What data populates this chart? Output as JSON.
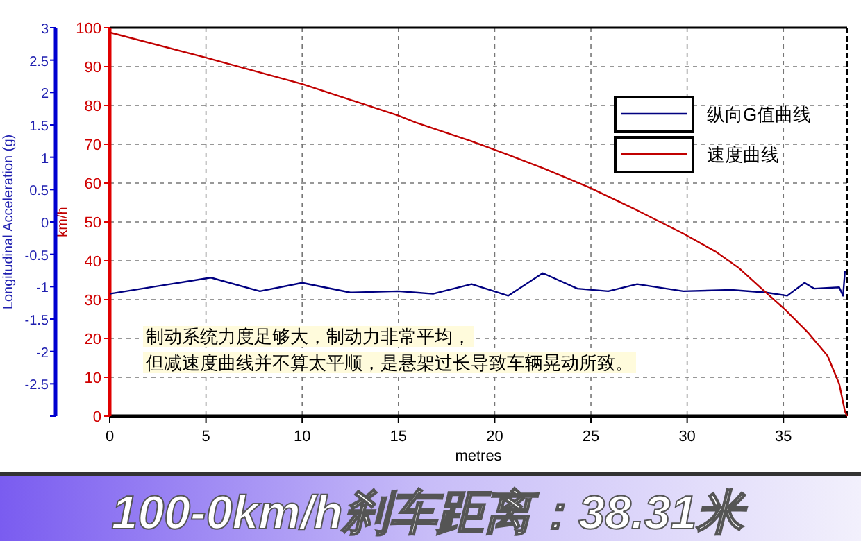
{
  "chart_data": {
    "type": "line",
    "title": "100-0km/h刹车距离：38.31米",
    "xlabel": "metres",
    "ylabel": "km/h",
    "y2label": "Longitudinal Acceleration (g)",
    "xlim": [
      0,
      38.31
    ],
    "xticks": [
      0,
      5,
      10,
      15,
      20,
      25,
      30,
      35
    ],
    "ylim": [
      0,
      100
    ],
    "yticks": [
      0,
      10,
      20,
      30,
      40,
      50,
      60,
      70,
      80,
      90,
      100
    ],
    "y2lim": [
      -3,
      3
    ],
    "y2ticks": [
      {
        "value": -3,
        "label": null
      },
      -2.5,
      -2,
      -1.5,
      -1,
      -0.5,
      0,
      0.5,
      1,
      1.5,
      2,
      2.5,
      3
    ],
    "grid": true,
    "legend": "top right",
    "annotations": [
      "制动系统力度足够大，制动力非常平均，",
      "但减速度曲线并不算太平顺，是悬架过长导致车辆晃动所致。"
    ],
    "series": [
      {
        "name": "纵向G值曲线",
        "color": "#000080",
        "axis": "y2",
        "x": [
          0,
          5.25,
          7.8,
          10.0,
          12.5,
          15.0,
          15.9,
          16.8,
          18.8,
          20.7,
          22.5,
          24.3,
          25.9,
          27.4,
          29.8,
          32.3,
          34.1,
          35.2,
          36.1,
          36.6,
          37.9,
          38.1,
          38.2
        ],
        "values": [
          -1.11,
          -0.86,
          -1.07,
          -0.94,
          -1.09,
          -1.07,
          -1.09,
          -1.11,
          -0.96,
          -1.14,
          -0.79,
          -1.03,
          -1.07,
          -0.96,
          -1.07,
          -1.05,
          -1.09,
          -1.14,
          -0.94,
          -1.03,
          -1.01,
          -1.14,
          -0.75
        ]
      },
      {
        "name": "速度曲线",
        "color": "#c00000",
        "x": [
          0,
          5,
          10,
          15,
          15.9,
          18.8,
          20.7,
          22.6,
          24.9,
          27.4,
          29.8,
          31.5,
          32.7,
          33.9,
          35.1,
          36.3,
          37.3,
          37.9,
          38.2,
          38.31
        ],
        "values": [
          98.8,
          92.3,
          85.5,
          77.4,
          75.6,
          70.8,
          67.3,
          63.7,
          58.9,
          53.0,
          47.0,
          42.3,
          38.1,
          32.7,
          27.4,
          21.4,
          15.5,
          8.3,
          1.2,
          0
        ]
      }
    ]
  }
}
